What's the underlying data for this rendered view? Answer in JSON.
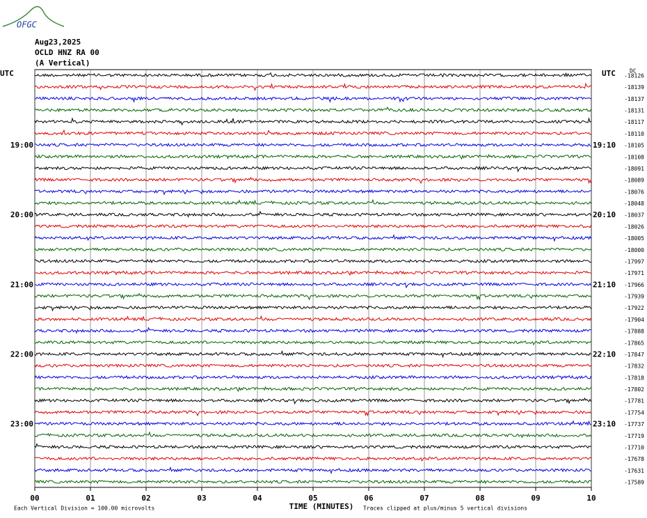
{
  "chart_data": {
    "type": "helicorder",
    "logo": "OFGC",
    "title_lines": [
      "Aug23,2025",
      "OCLD HNZ RA 00",
      "(A Vertical)"
    ],
    "left_axis_title": "UTC",
    "right_axis_title": "UTC",
    "offset_title": "DC",
    "xlabel": "TIME (MINUTES)",
    "footnote_left": "Each Vertical Division =  100.00 microvolts",
    "footnote_right": "Traces clipped at plus/minus 5 vertical divisions",
    "xlim": [
      0,
      10
    ],
    "xticks": [
      {
        "value": 0,
        "label": "00"
      },
      {
        "value": 1,
        "label": "01"
      },
      {
        "value": 2,
        "label": "02"
      },
      {
        "value": 3,
        "label": "03"
      },
      {
        "value": 4,
        "label": "04"
      },
      {
        "value": 5,
        "label": "05"
      },
      {
        "value": 6,
        "label": "06"
      },
      {
        "value": 7,
        "label": "07"
      },
      {
        "value": 8,
        "label": "08"
      },
      {
        "value": 9,
        "label": "09"
      },
      {
        "value": 10,
        "label": "10"
      }
    ],
    "colors": [
      "#000000",
      "#e00000",
      "#0000e0",
      "#006400"
    ],
    "left_labels": [
      null,
      null,
      null,
      null,
      null,
      null,
      "19:00",
      null,
      null,
      null,
      null,
      null,
      "20:00",
      null,
      null,
      null,
      null,
      null,
      "21:00",
      null,
      null,
      null,
      null,
      null,
      "22:00",
      null,
      null,
      null,
      null,
      null,
      "23:00",
      null,
      null,
      null,
      null,
      null
    ],
    "right_labels": [
      null,
      null,
      null,
      null,
      null,
      null,
      "19:10",
      null,
      null,
      null,
      null,
      null,
      "20:10",
      null,
      null,
      null,
      null,
      null,
      "21:10",
      null,
      null,
      null,
      null,
      null,
      "22:10",
      null,
      null,
      null,
      null,
      null,
      "23:10",
      null,
      null,
      null,
      null,
      null
    ],
    "offsets": [
      -18126,
      -18139,
      -18137,
      -18131,
      -18117,
      -18110,
      -18105,
      -18108,
      -18091,
      -18089,
      -18076,
      -18048,
      -18037,
      -18026,
      -18005,
      -18000,
      -17997,
      -17971,
      -17966,
      -17939,
      -17922,
      -17904,
      -17888,
      -17865,
      -17847,
      -17832,
      -17818,
      -17802,
      -17781,
      -17754,
      -17737,
      -17719,
      -17710,
      -17678,
      -17631,
      -17589
    ]
  }
}
